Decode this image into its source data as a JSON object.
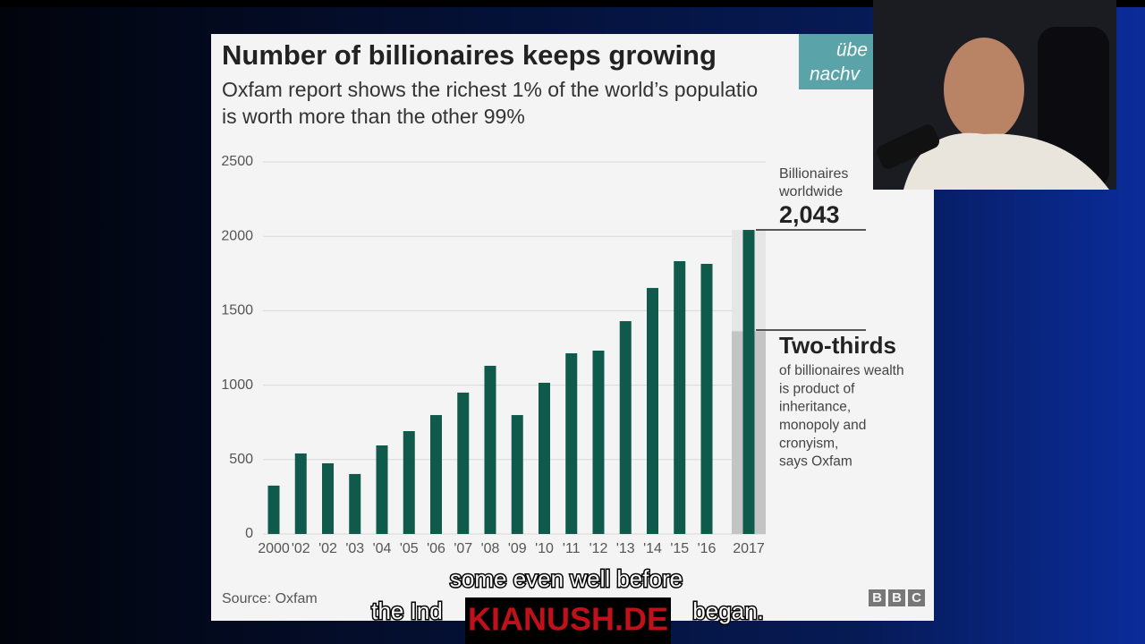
{
  "chart_data": {
    "type": "bar",
    "title": "Number of billionaires keeps growing",
    "subtitle": [
      "Oxfam report shows the richest 1% of the world’s populatio",
      "is worth more than the other 99%"
    ],
    "categories": [
      "2000",
      "'02",
      "'02",
      "'03",
      "'04",
      "'05",
      "'06",
      "'07",
      "'08",
      "'09",
      "'10",
      "'11",
      "'12",
      "'13",
      "'14",
      "'15",
      "'16",
      "2017"
    ],
    "values": [
      325,
      541,
      475,
      403,
      595,
      691,
      799,
      950,
      1130,
      799,
      1016,
      1214,
      1232,
      1430,
      1653,
      1833,
      1815,
      2043
    ],
    "value_labels": [
      null,
      null,
      null,
      null,
      null,
      null,
      null,
      null,
      null,
      null,
      null,
      null,
      null,
      null,
      null,
      null,
      null,
      "2,043"
    ],
    "color": "#0f5a4a",
    "ylim": [
      0,
      2500
    ],
    "yticks": [
      0,
      500,
      1000,
      1500,
      2000,
      2500
    ],
    "grid": true,
    "annotations": {
      "total_label": [
        "Billionaires",
        "worldwide"
      ],
      "highlight": "Two-thirds",
      "note": [
        "of billionaires wealth",
        "is product of",
        "inheritance,",
        "monopoly and",
        "cronyism,",
        "says Oxfam"
      ]
    },
    "source": "Source: Oxfam",
    "logo": [
      "B",
      "B",
      "C"
    ]
  },
  "overlay": {
    "badge": [
      "übe",
      "nachv"
    ],
    "captions": [
      "some even well before",
      "the Ind",
      "began."
    ],
    "watermark": "KIANUSH.DE"
  }
}
